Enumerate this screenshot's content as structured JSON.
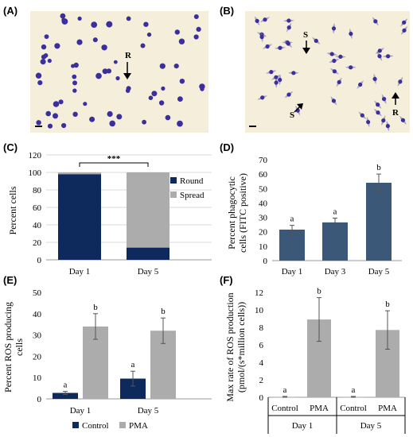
{
  "panel_labels": [
    "(A)",
    "(B)",
    "(C)",
    "(D)",
    "(E)",
    "(F)"
  ],
  "micrographs": {
    "a": {
      "label_r": "R"
    },
    "b": {
      "label_s1": "S",
      "label_s2": "S",
      "label_r": "R"
    }
  },
  "colors": {
    "navy": "#0e2a5c",
    "steel": "#3c5878",
    "gray": "#acacac",
    "micro_bg": "#f4eedb",
    "cell": "#3b2f9c"
  },
  "chart_data": [
    {
      "panel": "(C)",
      "type": "bar",
      "stacked": true,
      "categories": [
        "Day 1",
        "Day 5"
      ],
      "series": [
        {
          "name": "Round",
          "color": "#0e2a5c",
          "values": [
            98,
            14
          ]
        },
        {
          "name": "Spread",
          "color": "#acacac",
          "values": [
            2,
            86
          ]
        }
      ],
      "ylabel": "Percent cells",
      "ylim": [
        0,
        120
      ],
      "yticks": [
        "0",
        "20",
        "40",
        "60",
        "80",
        "100",
        "120"
      ],
      "annotation": "***",
      "legend": "right"
    },
    {
      "panel": "(D)",
      "type": "bar",
      "categories": [
        "Day 1",
        "Day 3",
        "Day 5"
      ],
      "values": [
        21.5,
        26.5,
        54
      ],
      "errors": [
        3,
        3,
        6
      ],
      "letters": [
        "a",
        "a",
        "b"
      ],
      "color": "#3c5878",
      "ylabel": "Percent phagocytic cells (FITC positive)",
      "ylabel_lines": [
        "Percent  phagocytic",
        "cells (FITC positive)"
      ],
      "ylim": [
        0,
        70
      ],
      "yticks": [
        "0",
        "10",
        "20",
        "30",
        "40",
        "50",
        "60",
        "70"
      ]
    },
    {
      "panel": "(E)",
      "type": "bar",
      "categories": [
        "Day 1",
        "Day 5"
      ],
      "series": [
        {
          "name": "Control",
          "color": "#0e2a5c",
          "values": [
            2.8,
            9.5
          ],
          "errors": [
            0.7,
            3.5
          ],
          "letters": [
            "a",
            "a"
          ]
        },
        {
          "name": "PMA",
          "color": "#acacac",
          "values": [
            34,
            32
          ],
          "errors": [
            6,
            6
          ],
          "letters": [
            "b",
            "b"
          ]
        }
      ],
      "ylabel": "Percent ROS producing cells",
      "ylabel_lines": [
        "Percent ROS producing",
        "cells"
      ],
      "ylim": [
        0,
        50
      ],
      "yticks": [
        "0",
        "10",
        "20",
        "30",
        "40",
        "50"
      ],
      "legend": "bottom"
    },
    {
      "panel": "(F)",
      "type": "bar",
      "categories": [
        "Control",
        "PMA",
        "Control",
        "PMA"
      ],
      "groups": [
        "Day 1",
        "Day 5"
      ],
      "values": [
        0.05,
        8.9,
        0.05,
        7.7
      ],
      "errors": [
        0.05,
        2.5,
        0.05,
        2.2
      ],
      "letters": [
        "a",
        "b",
        "a",
        "b"
      ],
      "color": "#acacac",
      "ylabel": "Max rate of ROS production (pmol/(s*million cells))",
      "ylabel_lines": [
        "Max rate of ROS production",
        "(pmol/(s*million cells))"
      ],
      "ylim": [
        0,
        12
      ],
      "yticks": [
        "0",
        "2",
        "4",
        "6",
        "8",
        "10",
        "12"
      ]
    }
  ]
}
